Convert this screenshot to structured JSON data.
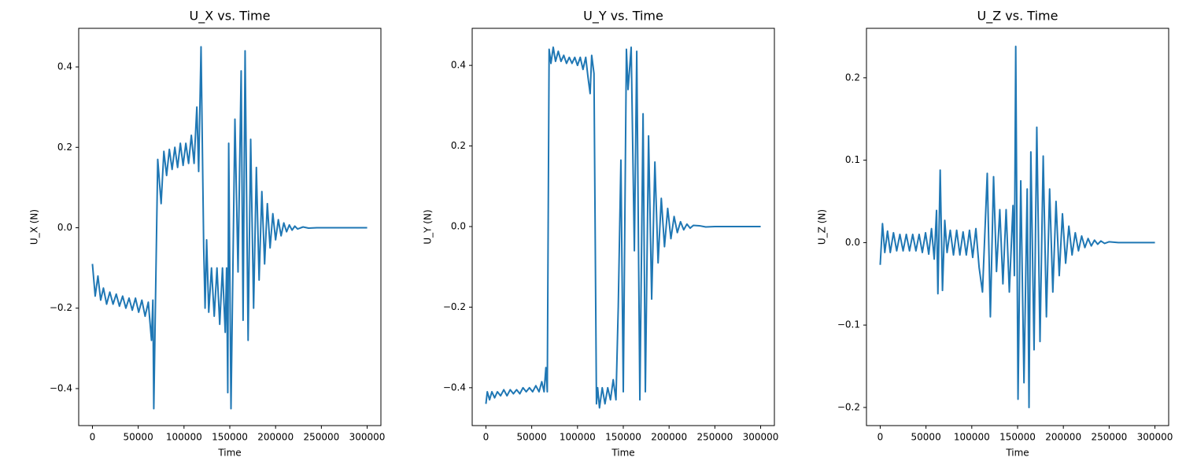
{
  "chart_data": [
    {
      "type": "line",
      "title": "U_X vs. Time",
      "xlabel": "Time",
      "ylabel": "U_X (N)",
      "xlim": [
        -15000,
        315000
      ],
      "ylim": [
        -0.492,
        0.496
      ],
      "xticks": [
        0,
        50000,
        100000,
        150000,
        200000,
        250000,
        300000
      ],
      "yticks": [
        {
          "value": -0.4,
          "label": "−0.4"
        },
        {
          "value": -0.2,
          "label": "−0.2"
        },
        {
          "value": 0,
          "label": "0.0"
        },
        0.2,
        0.4
      ],
      "x": [
        0,
        3000,
        6000,
        9000,
        12000,
        15500,
        19000,
        22500,
        26000,
        29500,
        33000,
        36500,
        40000,
        43500,
        47000,
        50500,
        54000,
        57500,
        61000,
        64500,
        66000,
        67000,
        71300,
        75000,
        78000,
        81000,
        84000,
        87000,
        90000,
        93000,
        96000,
        99000,
        102000,
        105000,
        108000,
        111000,
        114000,
        116000,
        118600,
        121500,
        123000,
        124700,
        127000,
        130000,
        133000,
        136000,
        139000,
        142000,
        145000,
        146500,
        147800,
        148800,
        151300,
        155600,
        159000,
        162400,
        164500,
        166700,
        170000,
        172800,
        176000,
        179000,
        182000,
        185000,
        188000,
        191000,
        194000,
        197000,
        200000,
        203000,
        206000,
        209000,
        212000,
        215000,
        218000,
        221000,
        224000,
        230000,
        236000,
        245000,
        300000
      ],
      "series": [
        {
          "name": "U_X",
          "color": "#1f77b4",
          "values": [
            -0.09,
            -0.17,
            -0.12,
            -0.18,
            -0.15,
            -0.19,
            -0.16,
            -0.19,
            -0.165,
            -0.195,
            -0.17,
            -0.2,
            -0.175,
            -0.205,
            -0.175,
            -0.21,
            -0.18,
            -0.22,
            -0.185,
            -0.28,
            -0.18,
            -0.45,
            0.17,
            0.06,
            0.19,
            0.13,
            0.195,
            0.145,
            0.2,
            0.15,
            0.21,
            0.155,
            0.21,
            0.16,
            0.23,
            0.16,
            0.3,
            0.14,
            0.45,
            -0.05,
            -0.2,
            -0.03,
            -0.21,
            -0.1,
            -0.22,
            -0.1,
            -0.24,
            -0.1,
            -0.26,
            -0.1,
            -0.41,
            0.21,
            -0.45,
            0.27,
            -0.11,
            0.39,
            -0.23,
            0.44,
            -0.28,
            0.22,
            -0.2,
            0.15,
            -0.13,
            0.09,
            -0.09,
            0.06,
            -0.05,
            0.035,
            -0.03,
            0.02,
            -0.02,
            0.012,
            -0.01,
            0.007,
            -0.006,
            0.004,
            -0.003,
            0.002,
            -0.001,
            0,
            0
          ]
        }
      ]
    },
    {
      "type": "line",
      "title": "U_Y vs. Time",
      "xlabel": "Time",
      "ylabel": "U_Y (N)",
      "xlim": [
        -15000,
        315000
      ],
      "ylim": [
        -0.494,
        0.492
      ],
      "xticks": [
        0,
        50000,
        100000,
        150000,
        200000,
        250000,
        300000
      ],
      "yticks": [
        {
          "value": -0.4,
          "label": "−0.4"
        },
        {
          "value": -0.2,
          "label": "−0.2"
        },
        {
          "value": 0,
          "label": "0.0"
        },
        0.2,
        0.4
      ],
      "x": [
        0,
        1500,
        4000,
        6500,
        9500,
        12500,
        16000,
        19500,
        23000,
        26500,
        30000,
        33500,
        37000,
        40500,
        44000,
        47500,
        51000,
        54500,
        58000,
        61000,
        63500,
        65500,
        67000,
        69000,
        71000,
        73500,
        76000,
        79000,
        82000,
        85000,
        88000,
        91000,
        94000,
        97000,
        100000,
        103000,
        106000,
        109000,
        111500,
        113800,
        115500,
        118000,
        120700,
        122000,
        124000,
        127000,
        130000,
        133000,
        136000,
        139000,
        142000,
        144500,
        147400,
        150000,
        153400,
        155200,
        158600,
        162100,
        164700,
        168100,
        171600,
        174100,
        177600,
        181000,
        184500,
        188000,
        191500,
        195000,
        198500,
        202000,
        205500,
        209000,
        212500,
        216000,
        219500,
        223000,
        226500,
        233000,
        240000,
        250000,
        300000
      ],
      "series": [
        {
          "name": "U_Y",
          "color": "#1f77b4",
          "values": [
            -0.44,
            -0.41,
            -0.43,
            -0.41,
            -0.425,
            -0.41,
            -0.42,
            -0.405,
            -0.42,
            -0.405,
            -0.415,
            -0.405,
            -0.415,
            -0.4,
            -0.41,
            -0.4,
            -0.41,
            -0.395,
            -0.41,
            -0.385,
            -0.41,
            -0.35,
            -0.41,
            0.44,
            0.405,
            0.445,
            0.41,
            0.435,
            0.41,
            0.425,
            0.405,
            0.42,
            0.405,
            0.42,
            0.4,
            0.42,
            0.39,
            0.42,
            0.37,
            0.33,
            0.425,
            0.38,
            -0.44,
            -0.4,
            -0.45,
            -0.4,
            -0.44,
            -0.4,
            -0.43,
            -0.38,
            -0.43,
            -0.2,
            0.165,
            -0.41,
            0.44,
            0.34,
            0.445,
            -0.06,
            0.435,
            -0.43,
            0.28,
            -0.41,
            0.225,
            -0.18,
            0.16,
            -0.09,
            0.07,
            -0.05,
            0.045,
            -0.03,
            0.025,
            -0.015,
            0.012,
            -0.008,
            0.006,
            -0.004,
            0.003,
            0.002,
            -0.001,
            0,
            0
          ]
        }
      ]
    },
    {
      "type": "line",
      "title": "U_Z vs. Time",
      "xlabel": "Time",
      "ylabel": "U_Z (N)",
      "xlim": [
        -15000,
        315000
      ],
      "ylim": [
        -0.222,
        0.26
      ],
      "xticks": [
        0,
        50000,
        100000,
        150000,
        200000,
        250000,
        300000
      ],
      "yticks": [
        {
          "value": -0.2,
          "label": "−0.2"
        },
        {
          "value": -0.1,
          "label": "−0.1"
        },
        {
          "value": 0,
          "label": "0.0"
        },
        0.1,
        0.2
      ],
      "x": [
        0,
        2500,
        5000,
        8000,
        11000,
        14500,
        18000,
        21500,
        25000,
        28500,
        32000,
        35500,
        39000,
        42500,
        46000,
        49500,
        53000,
        56000,
        59000,
        61500,
        63000,
        65500,
        68000,
        70500,
        73000,
        76500,
        80000,
        83500,
        87000,
        90500,
        94000,
        97500,
        101000,
        104500,
        108000,
        111700,
        116900,
        120300,
        123800,
        127000,
        130600,
        134000,
        137500,
        141000,
        145000,
        146500,
        148000,
        150500,
        153500,
        157000,
        160500,
        162500,
        164500,
        168000,
        171000,
        174500,
        178000,
        181500,
        185000,
        188500,
        192000,
        195500,
        199000,
        202500,
        206000,
        209500,
        213000,
        216500,
        220000,
        223500,
        227000,
        230500,
        234000,
        237500,
        241000,
        245000,
        250000,
        260000,
        300000
      ],
      "series": [
        {
          "name": "U_Z",
          "color": "#1f77b4",
          "values": [
            -0.027,
            0.023,
            -0.012,
            0.014,
            -0.012,
            0.012,
            -0.01,
            0.01,
            -0.01,
            0.01,
            -0.01,
            0.01,
            -0.01,
            0.01,
            -0.012,
            0.012,
            -0.014,
            0.017,
            -0.02,
            0.039,
            -0.062,
            0.088,
            -0.058,
            0.027,
            -0.012,
            0.015,
            -0.015,
            0.015,
            -0.015,
            0.013,
            -0.015,
            0.015,
            -0.018,
            0.017,
            -0.03,
            -0.06,
            0.084,
            -0.09,
            0.08,
            -0.035,
            0.04,
            -0.05,
            0.04,
            -0.06,
            0.045,
            -0.04,
            0.238,
            -0.19,
            0.075,
            -0.17,
            0.065,
            -0.2,
            0.11,
            -0.13,
            0.14,
            -0.12,
            0.105,
            -0.09,
            0.065,
            -0.06,
            0.05,
            -0.04,
            0.035,
            -0.025,
            0.02,
            -0.015,
            0.012,
            -0.01,
            0.008,
            -0.006,
            0.005,
            -0.004,
            0.003,
            -0.002,
            0.002,
            -0.001,
            0.001,
            0,
            0
          ]
        }
      ]
    }
  ]
}
